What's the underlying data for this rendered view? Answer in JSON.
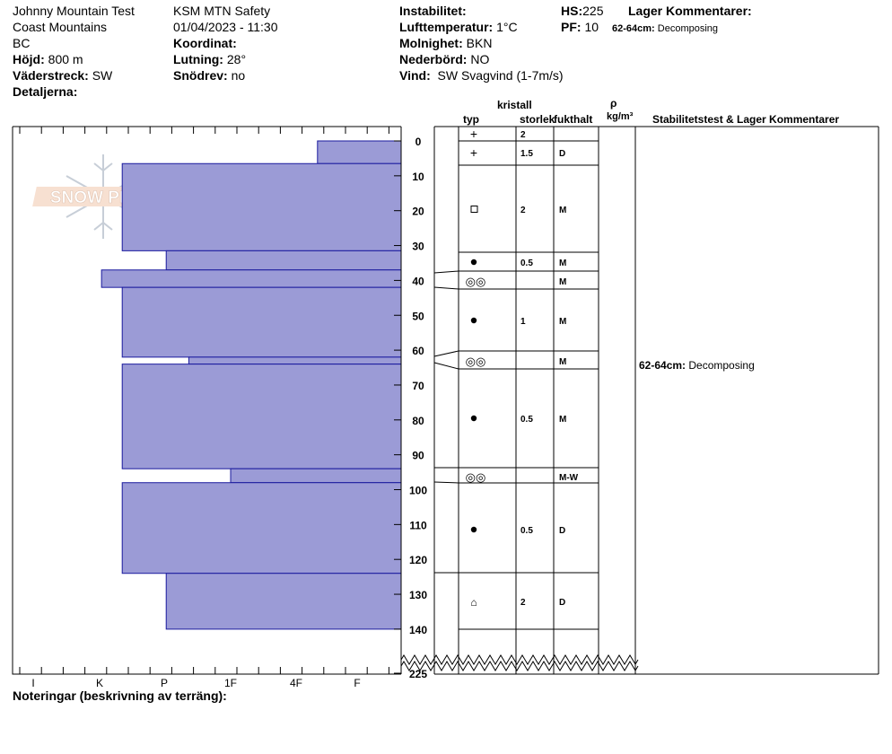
{
  "header": {
    "location": "Johnny Mountain Test",
    "range": "Coast Mountains",
    "state": "BC",
    "elevation_label": "Höjd:",
    "elevation": "800 m",
    "aspect_label": "Väderstreck:",
    "aspect": "SW",
    "details_label": "Detaljerna:",
    "observer": "KSM MTN Safety",
    "datetime": "01/04/2023 - 11:30",
    "coord_label": "Koordinat:",
    "slope_label": "Lutning:",
    "slope": "28°",
    "snowdrift_label": "Snödrev:",
    "snowdrift": "no",
    "instability_label": "Instabilitet:",
    "airtemp_label": "Lufttemperatur:",
    "airtemp": "1°C",
    "sky_label": "Molnighet:",
    "sky": "BKN",
    "precip_label": "Nederbörd:",
    "precip": "NO",
    "wind_label": "Vind:",
    "wind": "SW Svagvind (1-7m/s)",
    "hs_label": "HS:",
    "hs": "225",
    "pf_label": "PF:",
    "pf": "10",
    "layer_comments_label": "Lager Kommentarer:",
    "layer_comment_depth": "62-64cm:",
    "layer_comment_text": "Decomposing"
  },
  "logo": {
    "text": "SNOW PILOT"
  },
  "columns": {
    "crystal": "kristall",
    "type": "typ",
    "size": "storlek",
    "moisture": "fukthalt",
    "rho": "ρ",
    "density_unit": "kg/m³",
    "stability": "Stabilitetstest & Lager Kommentarer"
  },
  "notes_label": "Noteringar (beskrivning av terräng):",
  "chart_data": {
    "type": "bar",
    "title": "",
    "xlabel": "",
    "ylabel": "",
    "hardness_scale": [
      "I",
      "K",
      "P",
      "1F",
      "4F",
      "F"
    ],
    "depth_ticks": [
      0,
      10,
      20,
      30,
      40,
      50,
      60,
      70,
      80,
      90,
      100,
      110,
      120,
      130,
      140,
      225
    ],
    "ylim": [
      0,
      140
    ],
    "depth_break_after": 140,
    "total_depth": 225,
    "hardness_index_note": "0=F, 1=4F, 2=1F, 3=P, 4=K, 5=I",
    "layers": [
      {
        "top": 0,
        "bottom": 6.5,
        "hardness": 0.65,
        "crystal": "+",
        "size": "2",
        "moisture": ""
      },
      {
        "top": 6.5,
        "bottom": 31.5,
        "hardness": 3.65,
        "crystal": "+",
        "size": "1.5",
        "moisture": "D"
      },
      {
        "top": 31.5,
        "bottom": 37,
        "hardness": 2.97,
        "crystal": "□",
        "size": "2",
        "moisture": "M"
      },
      {
        "top": 37,
        "bottom": 42,
        "hardness": 3.97,
        "crystal": "●",
        "size": "0.5",
        "moisture": "M"
      },
      {
        "top": 42,
        "bottom": 62,
        "hardness": 3.65,
        "crystal": "◎◎",
        "size": "",
        "moisture": "M"
      },
      {
        "top": 62,
        "bottom": 64,
        "hardness": 2.63,
        "crystal": "●",
        "size": "1",
        "moisture": "M"
      },
      {
        "top": 64,
        "bottom": 94,
        "hardness": 3.65,
        "crystal": "◎◎",
        "size": "",
        "moisture": "M"
      },
      {
        "top": 94,
        "bottom": 98,
        "hardness": 2.0,
        "crystal": "●",
        "size": "0.5",
        "moisture": "M"
      },
      {
        "top": 98,
        "bottom": 124,
        "hardness": 3.65,
        "crystal": "◎◎",
        "size": "",
        "moisture": "M-W"
      },
      {
        "top": 124,
        "bottom": 140,
        "hardness": 2.97,
        "crystal": "●",
        "size": "0.5",
        "moisture": "D"
      },
      {
        "top": 140,
        "bottom": 140,
        "hardness": 0,
        "crystal": "⌂",
        "size": "2",
        "moisture": "D"
      }
    ]
  }
}
